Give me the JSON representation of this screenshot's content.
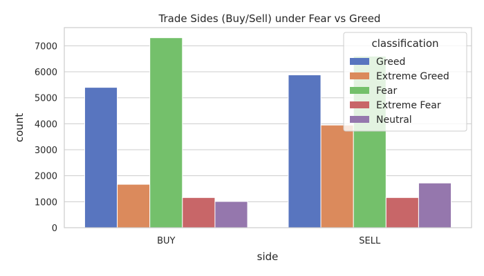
{
  "chart_data": {
    "type": "bar",
    "title": "Trade Sides (Buy/Sell) under Fear vs Greed",
    "xlabel": "side",
    "ylabel": "count",
    "categories": [
      "BUY",
      "SELL"
    ],
    "ylim": [
      0,
      7700
    ],
    "yticks": [
      0,
      1000,
      2000,
      3000,
      4000,
      5000,
      6000,
      7000
    ],
    "grid": true,
    "legend": {
      "title": "classification",
      "placement": "top-right"
    },
    "series": [
      {
        "name": "Greed",
        "color": "#5875bf",
        "values": [
          5400,
          5880
        ]
      },
      {
        "name": "Extreme Greed",
        "color": "#db8a5c",
        "values": [
          1670,
          3950
        ]
      },
      {
        "name": "Fear",
        "color": "#74c06b",
        "values": [
          7310,
          6600
        ]
      },
      {
        "name": "Extreme Fear",
        "color": "#c86668",
        "values": [
          1160,
          1160
        ]
      },
      {
        "name": "Neutral",
        "color": "#9577ad",
        "values": [
          1010,
          1720
        ]
      }
    ]
  }
}
